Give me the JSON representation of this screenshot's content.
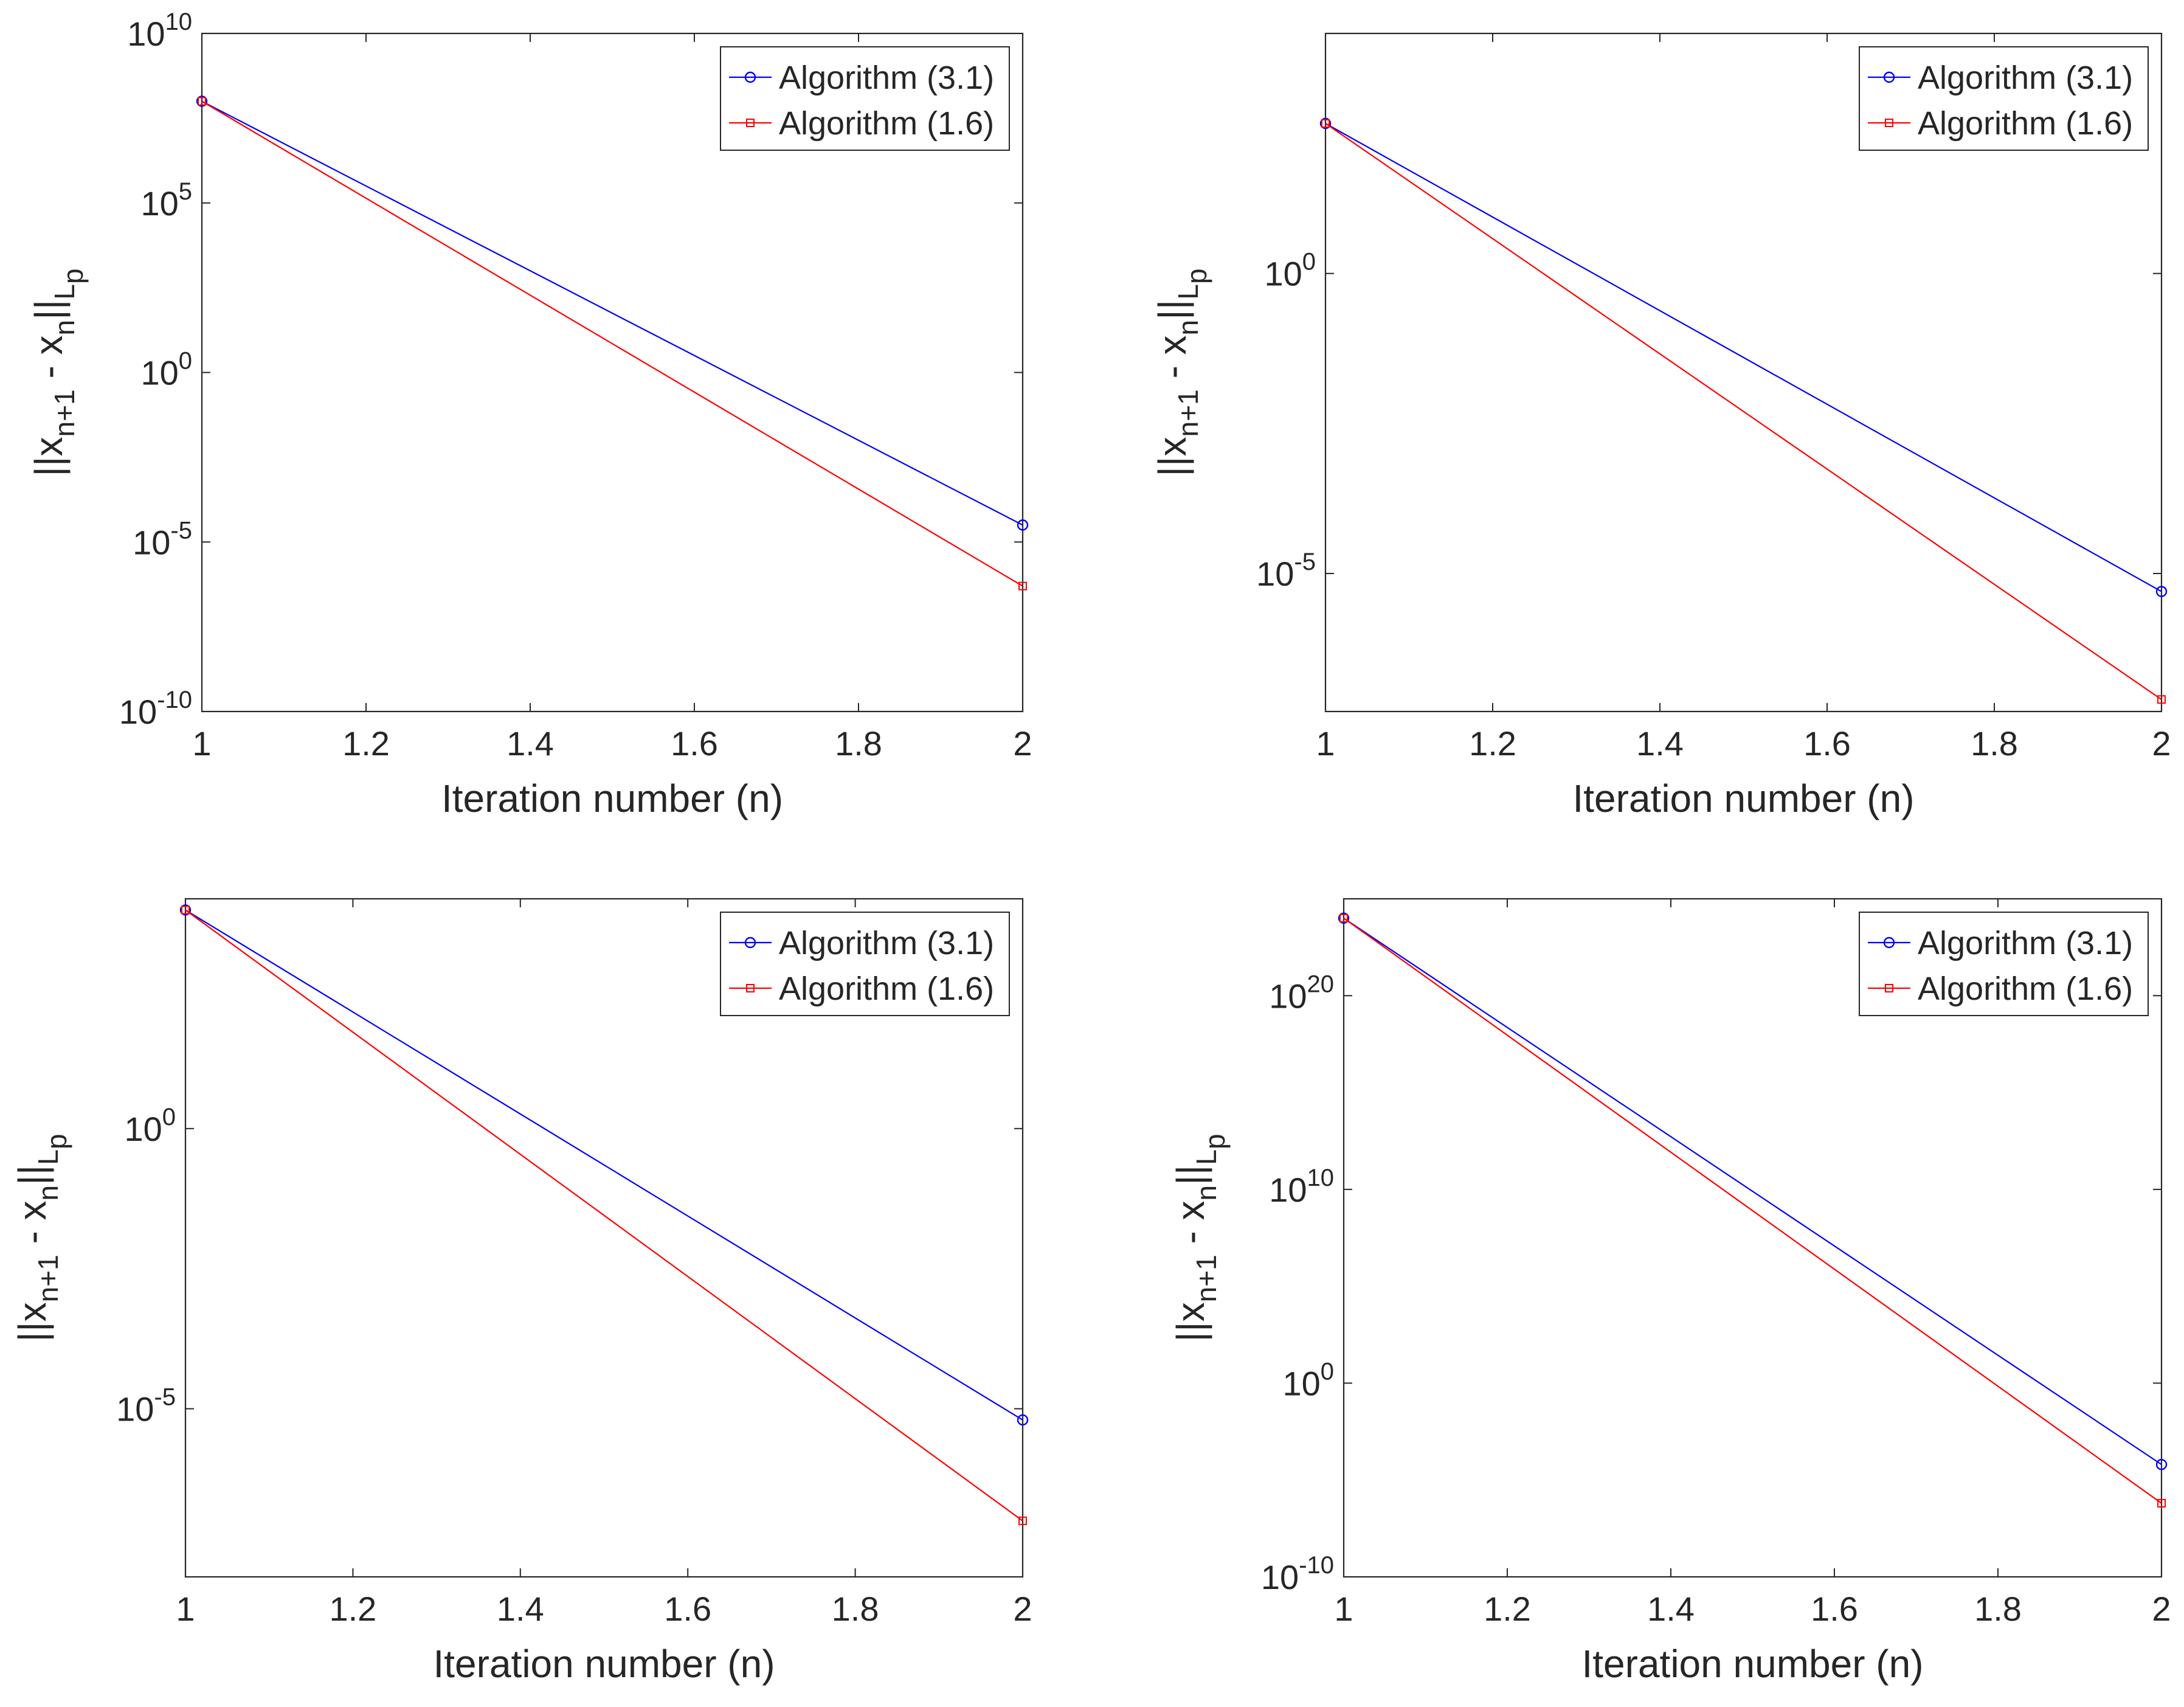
{
  "figure": {
    "colors": {
      "algo31": "#0000ff",
      "algo16": "#ff0000",
      "text": "#262626",
      "grid": "#dfdfdf"
    }
  },
  "chart_data": [
    {
      "type": "line",
      "panel": "top-left",
      "xlabel": "Iteration number (n)",
      "ylabel": {
        "prefix": "||x",
        "sub1": "n+1",
        "mid": " - x",
        "sub2": "n",
        "bar": "||",
        "sub3": "L",
        "subsub": "p"
      },
      "yscale": "log",
      "xlim": [
        1,
        2
      ],
      "ylim_exp": [
        -10,
        10
      ],
      "xticks": [
        "1",
        "1.2",
        "1.4",
        "1.6",
        "1.8",
        "2"
      ],
      "yticks": [
        {
          "base": "10",
          "exp": "10"
        },
        {
          "base": "10",
          "exp": "5"
        },
        {
          "base": "10",
          "exp": "0"
        },
        {
          "base": "10",
          "exp": "-5"
        },
        {
          "base": "10",
          "exp": "-10"
        }
      ],
      "legend_position": "top-right",
      "series": [
        {
          "name": "Algorithm (3.1)",
          "color": "#0000ff",
          "marker": "circle",
          "x": [
            1,
            2
          ],
          "log10_y": [
            8.0,
            -4.5
          ]
        },
        {
          "name": "Algorithm (1.6)",
          "color": "#ff0000",
          "marker": "square",
          "x": [
            1,
            2
          ],
          "log10_y": [
            8.0,
            -6.3
          ]
        }
      ]
    },
    {
      "type": "line",
      "panel": "top-right",
      "xlabel": "Iteration number (n)",
      "ylabel": {
        "prefix": "||x",
        "sub1": "n+1",
        "mid": " - x",
        "sub2": "n",
        "bar": "||",
        "sub3": "L",
        "subsub": "p"
      },
      "yscale": "log",
      "xlim": [
        1,
        2
      ],
      "ylim_exp": [
        -7.3,
        4.0
      ],
      "xticks": [
        "1",
        "1.2",
        "1.4",
        "1.6",
        "1.8",
        "2"
      ],
      "yticks": [
        {
          "base": "10",
          "exp": "0"
        },
        {
          "base": "10",
          "exp": "-5"
        }
      ],
      "legend_position": "top-right",
      "series": [
        {
          "name": "Algorithm (3.1)",
          "color": "#0000ff",
          "marker": "circle",
          "x": [
            1,
            2
          ],
          "log10_y": [
            2.5,
            -5.3
          ]
        },
        {
          "name": "Algorithm (1.6)",
          "color": "#ff0000",
          "marker": "square",
          "x": [
            1,
            2
          ],
          "log10_y": [
            2.5,
            -7.1
          ]
        }
      ]
    },
    {
      "type": "line",
      "panel": "bottom-left",
      "xlabel": "Iteration number (n)",
      "ylabel": {
        "prefix": "||x",
        "sub1": "n+1",
        "mid": " - x",
        "sub2": "n",
        "bar": "||",
        "sub3": "L",
        "subsub": "p"
      },
      "yscale": "log",
      "xlim": [
        1,
        2
      ],
      "ylim_exp": [
        -8.0,
        4.1
      ],
      "xticks": [
        "1",
        "1.2",
        "1.4",
        "1.6",
        "1.8",
        "2"
      ],
      "yticks": [
        {
          "base": "10",
          "exp": "0"
        },
        {
          "base": "10",
          "exp": "-5"
        }
      ],
      "legend_position": "top-right",
      "series": [
        {
          "name": "Algorithm (3.1)",
          "color": "#0000ff",
          "marker": "circle",
          "x": [
            1,
            2
          ],
          "log10_y": [
            3.9,
            -5.2
          ]
        },
        {
          "name": "Algorithm (1.6)",
          "color": "#ff0000",
          "marker": "square",
          "x": [
            1,
            2
          ],
          "log10_y": [
            3.9,
            -7.0
          ]
        }
      ]
    },
    {
      "type": "line",
      "panel": "bottom-right",
      "xlabel": "Iteration number (n)",
      "ylabel": {
        "prefix": "||x",
        "sub1": "n+1",
        "mid": " - x",
        "sub2": "n",
        "bar": "||",
        "sub3": "L",
        "subsub": "p"
      },
      "yscale": "log",
      "xlim": [
        1,
        2
      ],
      "ylim_exp": [
        -10,
        25
      ],
      "xticks": [
        "1",
        "1.2",
        "1.4",
        "1.6",
        "1.8",
        "2"
      ],
      "yticks": [
        {
          "base": "10",
          "exp": "20"
        },
        {
          "base": "10",
          "exp": "10"
        },
        {
          "base": "10",
          "exp": "0"
        },
        {
          "base": "10",
          "exp": "-10"
        }
      ],
      "legend_position": "top-right",
      "series": [
        {
          "name": "Algorithm (3.1)",
          "color": "#0000ff",
          "marker": "circle",
          "x": [
            1,
            2
          ],
          "log10_y": [
            24.0,
            -4.2
          ]
        },
        {
          "name": "Algorithm (1.6)",
          "color": "#ff0000",
          "marker": "square",
          "x": [
            1,
            2
          ],
          "log10_y": [
            24.0,
            -6.2
          ]
        }
      ]
    }
  ]
}
